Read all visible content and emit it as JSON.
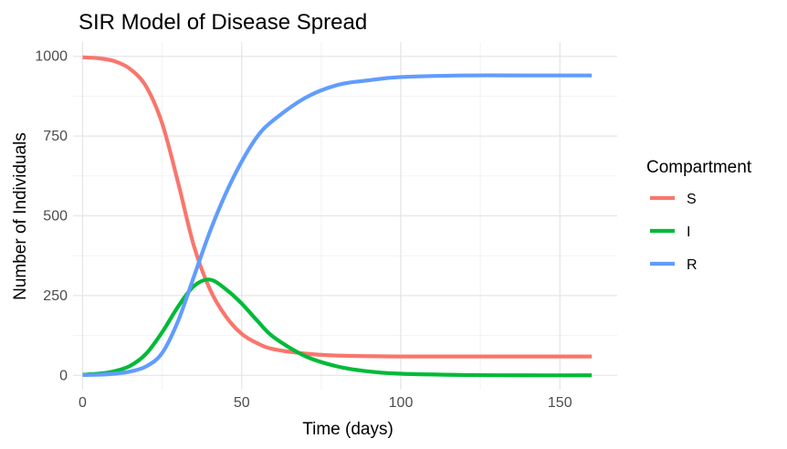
{
  "chart_data": {
    "type": "line",
    "title": "SIR Model of Disease Spread",
    "xlabel": "Time (days)",
    "ylabel": "Number of Individuals",
    "xlim": [
      -3,
      168
    ],
    "ylim": [
      -45,
      1045
    ],
    "x_ticks": [
      0,
      50,
      100,
      150
    ],
    "y_ticks": [
      0,
      250,
      500,
      750,
      1000
    ],
    "x_tick_labels": [
      "0",
      "50",
      "100",
      "150"
    ],
    "y_tick_labels": [
      "0",
      "250",
      "500",
      "750",
      "1000"
    ],
    "grid": true,
    "legend": {
      "title": "Compartment",
      "position": "right"
    },
    "series": [
      {
        "name": "S",
        "color": "#F8766D",
        "x": [
          0,
          5,
          10,
          15,
          20,
          25,
          30,
          35,
          40,
          45,
          50,
          55,
          60,
          70,
          80,
          100,
          120,
          140,
          160
        ],
        "y": [
          997,
          994,
          985,
          960,
          905,
          790,
          605,
          405,
          270,
          185,
          130,
          100,
          82,
          68,
          62,
          59,
          59,
          59,
          59
        ]
      },
      {
        "name": "I",
        "color": "#00BA38",
        "x": [
          0,
          5,
          10,
          15,
          20,
          25,
          30,
          35,
          40,
          45,
          50,
          55,
          60,
          70,
          80,
          90,
          100,
          120,
          140,
          160
        ],
        "y": [
          2,
          5,
          13,
          30,
          68,
          135,
          215,
          280,
          300,
          270,
          225,
          170,
          120,
          60,
          28,
          12,
          5,
          1,
          0,
          0
        ]
      },
      {
        "name": "R",
        "color": "#619CFF",
        "x": [
          0,
          5,
          10,
          15,
          20,
          25,
          30,
          35,
          40,
          45,
          50,
          55,
          60,
          70,
          80,
          90,
          100,
          120,
          140,
          160
        ],
        "y": [
          1,
          2,
          5,
          12,
          28,
          70,
          170,
          310,
          450,
          570,
          670,
          750,
          800,
          870,
          910,
          925,
          935,
          940,
          940,
          940
        ]
      }
    ]
  }
}
